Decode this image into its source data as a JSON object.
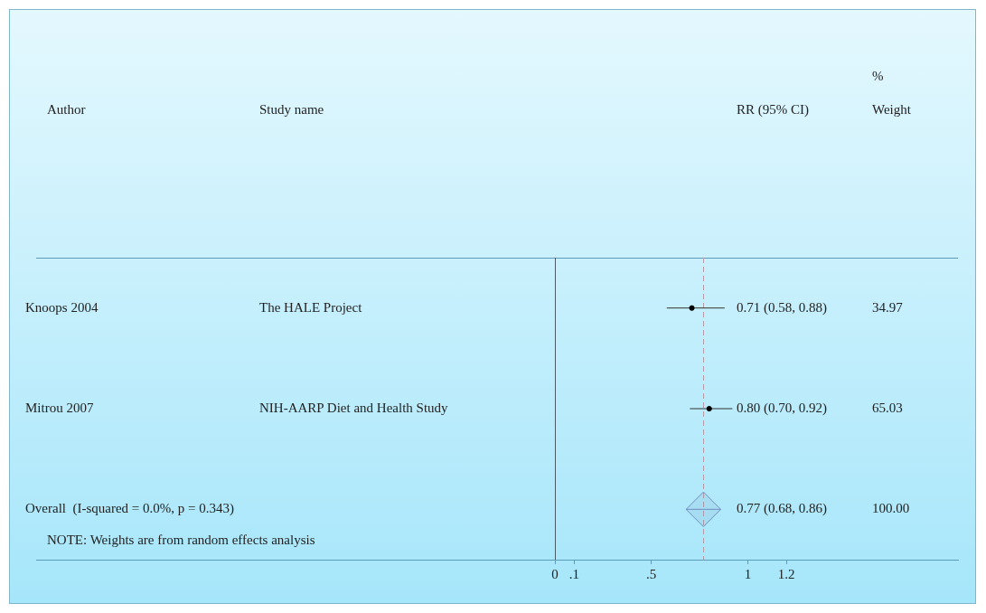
{
  "chart_data": {
    "type": "scatter",
    "orientation": "horizontal",
    "categories": [
      "Knoops 2004",
      "Mitrou 2007",
      "Overall  (I-squared = 0.0%, p = 0.343)"
    ],
    "series": [
      {
        "marker": "circle",
        "color": "#000000",
        "values": [
          0.71,
          0.8,
          null
        ],
        "errors": [
          [
            0.58,
            0.88
          ],
          [
            0.7,
            0.92
          ],
          null
        ],
        "value_labels": [
          "0.71 (0.58, 0.88)",
          "0.80 (0.70, 0.92)",
          null
        ]
      },
      {
        "marker": "diamond",
        "color": "#6f8fbf",
        "values": [
          null,
          null,
          0.77
        ],
        "errors": [
          null,
          null,
          [
            0.68,
            0.86
          ]
        ],
        "value_labels": [
          null,
          null,
          "0.77 (0.68, 0.86)"
        ]
      }
    ],
    "xlim": [
      -2.69,
      2.09
    ],
    "xticks": [
      0,
      {
        "value": 0.1,
        "label": ".1"
      },
      {
        "value": 0.5,
        "label": ".5"
      },
      1,
      1.2
    ],
    "ref_lines": [
      {
        "axis": "x",
        "value": 0,
        "color": "#4a5a66",
        "line_style": "solid"
      },
      {
        "axis": "x",
        "value": 0.77,
        "color": "#b89aa6",
        "line_style": "dashed"
      }
    ],
    "grid": false,
    "legend": false,
    "annotations": [
      "Author",
      "Study name",
      "RR (95% CI)",
      "%\nWeight",
      "NOTE: Weights are from random effects analysis",
      "The HALE Project",
      "34.97",
      "NIH-AARP Diet and Health Study",
      "65.03",
      "100.00"
    ]
  }
}
